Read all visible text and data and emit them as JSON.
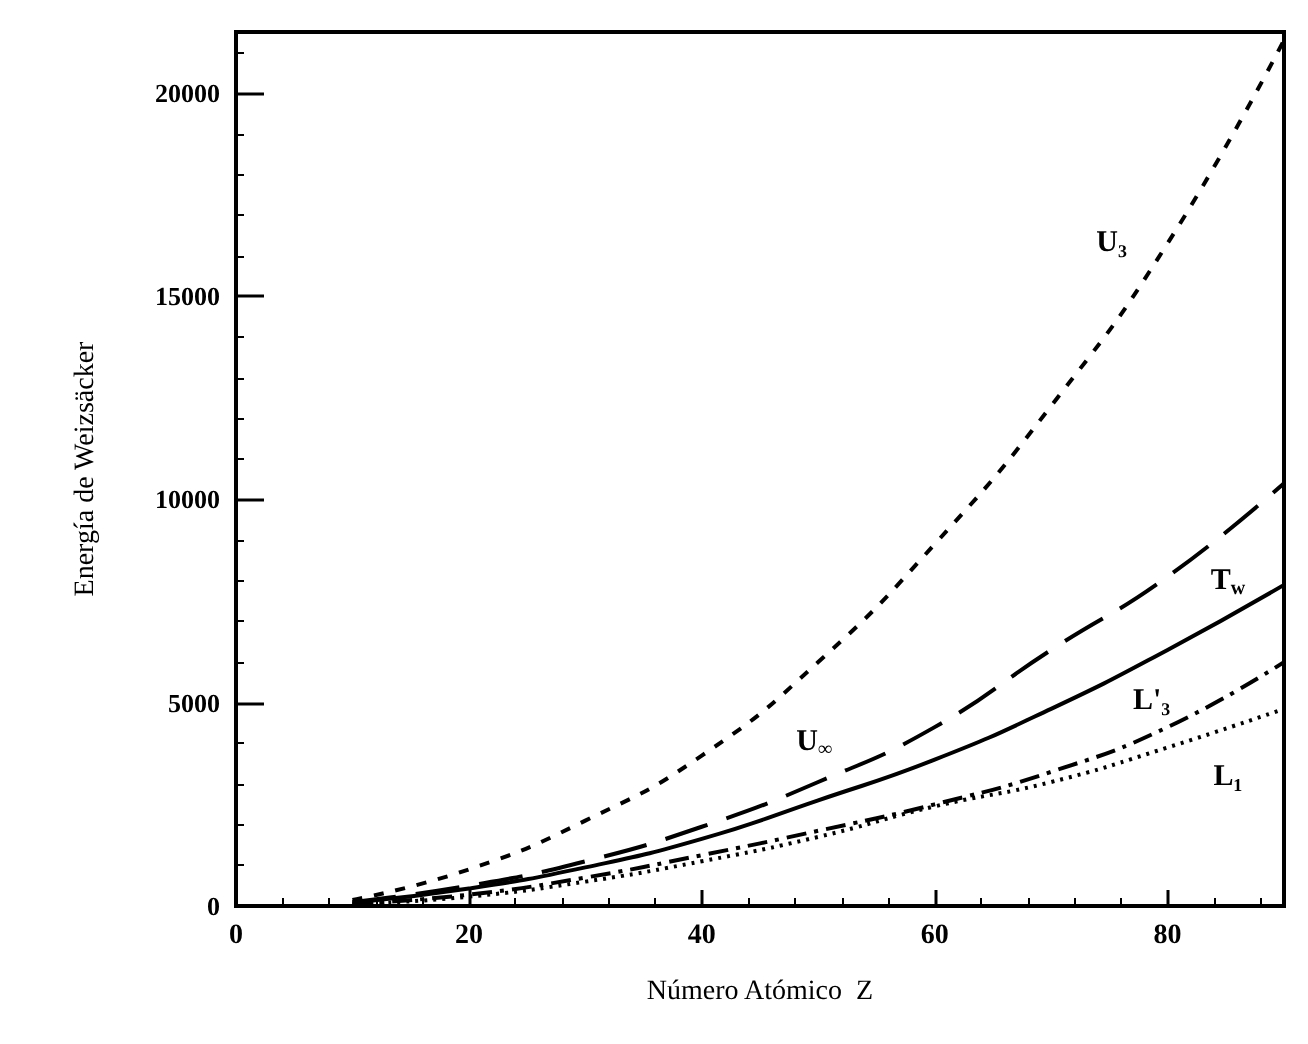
{
  "chart_data": {
    "type": "line",
    "xlabel": "Número Atómico  Z",
    "ylabel": "Energía de Weizsäcker",
    "x": [
      10,
      20,
      30,
      40,
      50,
      60,
      70,
      80,
      90
    ],
    "series": [
      {
        "name": "U₃",
        "color": "#000000",
        "line_style": "dashed",
        "values": [
          150,
          900,
          2100,
          3700,
          6000,
          8900,
          12300,
          16300,
          21300
        ]
      },
      {
        "name": "U$_{∞}$",
        "color": "#000000",
        "line_style": "longdashed",
        "values": [
          100,
          500,
          1100,
          1950,
          3050,
          4400,
          6300,
          8100,
          10400
        ]
      },
      {
        "name": "T$_{w}$",
        "color": "#000000",
        "line_style": "solid",
        "values": [
          80,
          430,
          950,
          1650,
          2600,
          3600,
          4850,
          6300,
          7900
        ]
      },
      {
        "name": "L'₃",
        "color": "#000000",
        "line_style": "dashdot",
        "values": [
          50,
          280,
          700,
          1250,
          1850,
          2500,
          3300,
          4400,
          6000
        ]
      },
      {
        "name": "L₁",
        "color": "#000000",
        "line_style": "dotted",
        "values": [
          40,
          230,
          600,
          1100,
          1700,
          2450,
          3050,
          3900,
          4850
        ]
      }
    ],
    "xlim": [
      0,
      90
    ],
    "xticks": [
      0,
      20,
      40,
      60,
      80
    ],
    "ylim": [
      0,
      21500
    ],
    "yticks": [
      0,
      5000,
      10000,
      15000,
      20000
    ],
    "grid": false,
    "legend": false,
    "marker": "none"
  }
}
